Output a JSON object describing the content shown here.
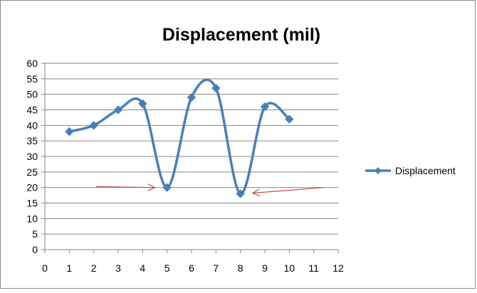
{
  "chart_data": {
    "type": "line",
    "title": "Displacement (mil)",
    "xlabel": "",
    "ylabel": "",
    "xlim": [
      0,
      12
    ],
    "ylim": [
      0,
      60
    ],
    "x_ticks": [
      0,
      1,
      2,
      3,
      4,
      5,
      6,
      7,
      8,
      9,
      10,
      11,
      12
    ],
    "y_ticks": [
      0,
      5,
      10,
      15,
      20,
      25,
      30,
      35,
      40,
      45,
      50,
      55,
      60
    ],
    "grid": "horizontal",
    "legend_position": "right",
    "smooth": true,
    "series": [
      {
        "name": "Displacement",
        "color": "#4a7ebb",
        "marker": "diamond",
        "x": [
          1,
          2,
          3,
          4,
          5,
          6,
          7,
          8,
          9,
          10
        ],
        "y": [
          38,
          40,
          45,
          47,
          20,
          49,
          52,
          18,
          46,
          42
        ]
      }
    ],
    "annotations": [
      {
        "type": "arrow",
        "color": "#c0504d",
        "from": [
          2.1,
          20.3
        ],
        "to": [
          4.5,
          20
        ]
      },
      {
        "type": "arrow",
        "color": "#c0504d",
        "from": [
          11.4,
          20
        ],
        "to": [
          8.5,
          18.2
        ]
      }
    ]
  }
}
